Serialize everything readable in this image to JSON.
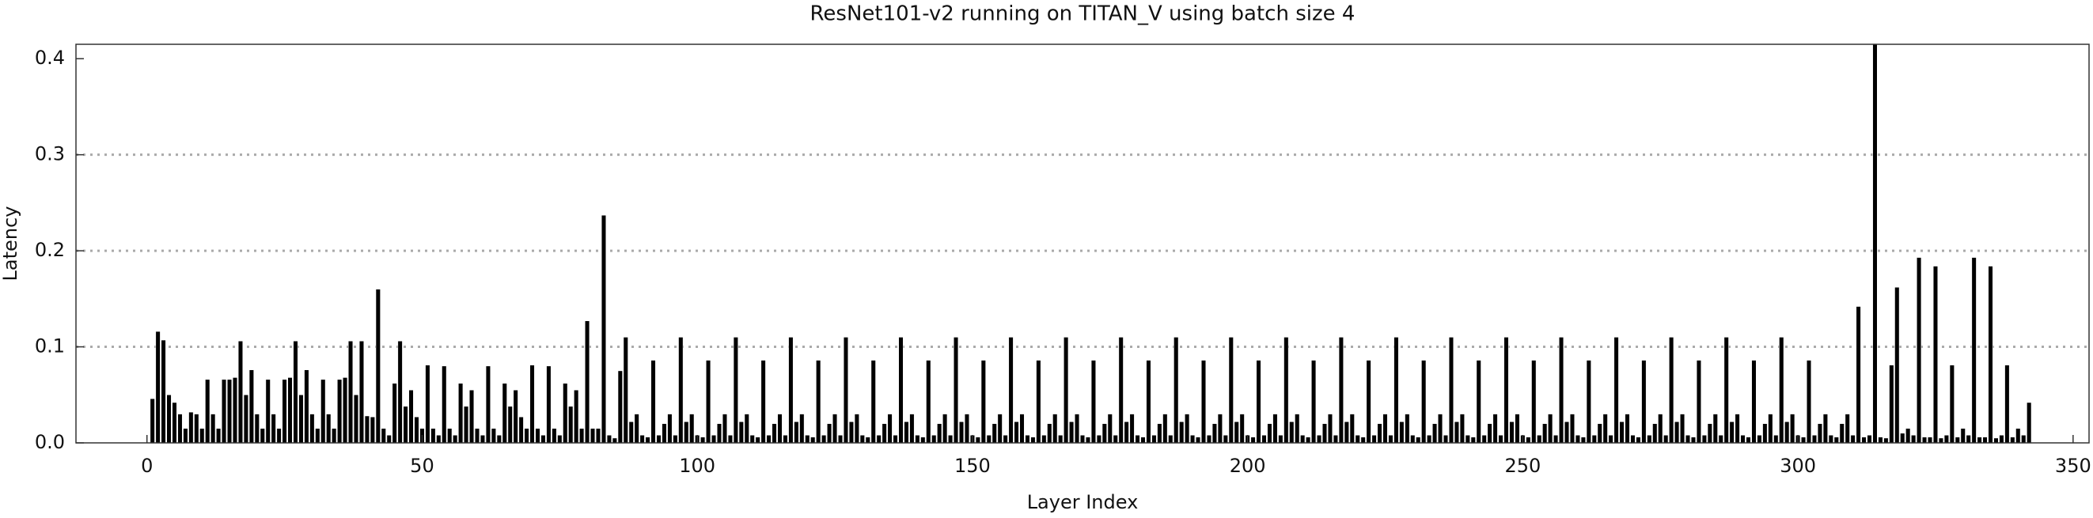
{
  "chart_data": {
    "type": "bar",
    "title": "ResNet101-v2 running on TITAN_V using batch size 4",
    "x_label": "Layer Index",
    "y_label": "Latency",
    "color": "#000000",
    "grid": true,
    "xlim": [
      -12.9,
      352.9
    ],
    "ylim": [
      0,
      0.415
    ],
    "xticks": [
      0,
      50,
      100,
      150,
      200,
      250,
      300,
      350
    ],
    "yticks": [
      {
        "value": 0,
        "label": "0.0"
      },
      0.1,
      0.2,
      0.3,
      0.4
    ],
    "x": [
      1,
      2,
      3,
      4,
      5,
      6,
      7,
      8,
      9,
      10,
      11,
      12,
      13,
      14,
      15,
      16,
      17,
      18,
      19,
      20,
      21,
      22,
      23,
      24,
      25,
      26,
      27,
      28,
      29,
      30,
      31,
      32,
      33,
      34,
      35,
      36,
      37,
      38,
      39,
      40,
      41,
      42,
      43,
      44,
      45,
      46,
      47,
      48,
      49,
      50,
      51,
      52,
      53,
      54,
      55,
      56,
      57,
      58,
      59,
      60,
      61,
      62,
      63,
      64,
      65,
      66,
      67,
      68,
      69,
      70,
      71,
      72,
      73,
      74,
      75,
      76,
      77,
      78,
      79,
      80,
      81,
      82,
      83,
      84,
      85,
      86,
      87,
      88,
      89,
      90,
      91,
      92,
      93,
      94,
      95,
      96,
      97,
      98,
      99,
      100,
      101,
      102,
      103,
      104,
      105,
      106,
      107,
      108,
      109,
      110,
      111,
      112,
      113,
      114,
      115,
      116,
      117,
      118,
      119,
      120,
      121,
      122,
      123,
      124,
      125,
      126,
      127,
      128,
      129,
      130,
      131,
      132,
      133,
      134,
      135,
      136,
      137,
      138,
      139,
      140,
      141,
      142,
      143,
      144,
      145,
      146,
      147,
      148,
      149,
      150,
      151,
      152,
      153,
      154,
      155,
      156,
      157,
      158,
      159,
      160,
      161,
      162,
      163,
      164,
      165,
      166,
      167,
      168,
      169,
      170,
      171,
      172,
      173,
      174,
      175,
      176,
      177,
      178,
      179,
      180,
      181,
      182,
      183,
      184,
      185,
      186,
      187,
      188,
      189,
      190,
      191,
      192,
      193,
      194,
      195,
      196,
      197,
      198,
      199,
      200,
      201,
      202,
      203,
      204,
      205,
      206,
      207,
      208,
      209,
      210,
      211,
      212,
      213,
      214,
      215,
      216,
      217,
      218,
      219,
      220,
      221,
      222,
      223,
      224,
      225,
      226,
      227,
      228,
      229,
      230,
      231,
      232,
      233,
      234,
      235,
      236,
      237,
      238,
      239,
      240,
      241,
      242,
      243,
      244,
      245,
      246,
      247,
      248,
      249,
      250,
      251,
      252,
      253,
      254,
      255,
      256,
      257,
      258,
      259,
      260,
      261,
      262,
      263,
      264,
      265,
      266,
      267,
      268,
      269,
      270,
      271,
      272,
      273,
      274,
      275,
      276,
      277,
      278,
      279,
      280,
      281,
      282,
      283,
      284,
      285,
      286,
      287,
      288,
      289,
      290,
      291,
      292,
      293,
      294,
      295,
      296,
      297,
      298,
      299,
      300,
      301,
      302,
      303,
      304,
      305,
      306,
      307,
      308,
      309,
      310,
      311,
      312,
      313,
      314,
      315,
      316,
      317,
      318,
      319,
      320,
      321,
      322,
      323,
      324,
      325,
      326,
      327,
      328,
      329,
      330,
      331,
      332,
      333,
      334,
      335,
      336,
      337,
      338,
      339,
      340,
      341,
      342
    ],
    "values": [
      0.046,
      0.116,
      0.107,
      0.05,
      0.042,
      0.03,
      0.015,
      0.032,
      0.03,
      0.015,
      0.066,
      0.03,
      0.015,
      0.066,
      0.066,
      0.068,
      0.106,
      0.05,
      0.076,
      0.03,
      0.015,
      0.066,
      0.03,
      0.015,
      0.066,
      0.068,
      0.106,
      0.05,
      0.076,
      0.03,
      0.015,
      0.066,
      0.03,
      0.015,
      0.066,
      0.068,
      0.106,
      0.05,
      0.106,
      0.028,
      0.027,
      0.16,
      0.015,
      0.008,
      0.062,
      0.106,
      0.038,
      0.055,
      0.027,
      0.015,
      0.081,
      0.015,
      0.008,
      0.08,
      0.015,
      0.008,
      0.062,
      0.038,
      0.055,
      0.015,
      0.008,
      0.08,
      0.015,
      0.008,
      0.062,
      0.038,
      0.055,
      0.027,
      0.015,
      0.081,
      0.015,
      0.008,
      0.08,
      0.015,
      0.008,
      0.062,
      0.038,
      0.055,
      0.015,
      0.127,
      0.015,
      0.015,
      0.237,
      0.008,
      0.005,
      0.075,
      0.11,
      0.022,
      0.03,
      0.008,
      0.006,
      0.086,
      0.008,
      0.02,
      0.03,
      0.008,
      0.11,
      0.022,
      0.03,
      0.008,
      0.006,
      0.086,
      0.008,
      0.02,
      0.03,
      0.008,
      0.11,
      0.022,
      0.03,
      0.008,
      0.006,
      0.086,
      0.008,
      0.02,
      0.03,
      0.008,
      0.11,
      0.022,
      0.03,
      0.008,
      0.006,
      0.086,
      0.008,
      0.02,
      0.03,
      0.008,
      0.11,
      0.022,
      0.03,
      0.008,
      0.006,
      0.086,
      0.008,
      0.02,
      0.03,
      0.008,
      0.11,
      0.022,
      0.03,
      0.008,
      0.006,
      0.086,
      0.008,
      0.02,
      0.03,
      0.008,
      0.11,
      0.022,
      0.03,
      0.008,
      0.006,
      0.086,
      0.008,
      0.02,
      0.03,
      0.008,
      0.11,
      0.022,
      0.03,
      0.008,
      0.006,
      0.086,
      0.008,
      0.02,
      0.03,
      0.008,
      0.11,
      0.022,
      0.03,
      0.008,
      0.006,
      0.086,
      0.008,
      0.02,
      0.03,
      0.008,
      0.11,
      0.022,
      0.03,
      0.008,
      0.006,
      0.086,
      0.008,
      0.02,
      0.03,
      0.008,
      0.11,
      0.022,
      0.03,
      0.008,
      0.006,
      0.086,
      0.008,
      0.02,
      0.03,
      0.008,
      0.11,
      0.022,
      0.03,
      0.008,
      0.006,
      0.086,
      0.008,
      0.02,
      0.03,
      0.008,
      0.11,
      0.022,
      0.03,
      0.008,
      0.006,
      0.086,
      0.008,
      0.02,
      0.03,
      0.008,
      0.11,
      0.022,
      0.03,
      0.008,
      0.006,
      0.086,
      0.008,
      0.02,
      0.03,
      0.008,
      0.11,
      0.022,
      0.03,
      0.008,
      0.006,
      0.086,
      0.008,
      0.02,
      0.03,
      0.008,
      0.11,
      0.022,
      0.03,
      0.008,
      0.006,
      0.086,
      0.008,
      0.02,
      0.03,
      0.008,
      0.11,
      0.022,
      0.03,
      0.008,
      0.006,
      0.086,
      0.008,
      0.02,
      0.03,
      0.008,
      0.11,
      0.022,
      0.03,
      0.008,
      0.006,
      0.086,
      0.008,
      0.02,
      0.03,
      0.008,
      0.11,
      0.022,
      0.03,
      0.008,
      0.006,
      0.086,
      0.008,
      0.02,
      0.03,
      0.008,
      0.11,
      0.022,
      0.03,
      0.008,
      0.006,
      0.086,
      0.008,
      0.02,
      0.03,
      0.008,
      0.11,
      0.022,
      0.03,
      0.008,
      0.006,
      0.086,
      0.008,
      0.02,
      0.03,
      0.008,
      0.11,
      0.022,
      0.03,
      0.008,
      0.006,
      0.086,
      0.008,
      0.02,
      0.03,
      0.008,
      0.006,
      0.02,
      0.03,
      0.008,
      0.142,
      0.006,
      0.008,
      0.415,
      0.006,
      0.005,
      0.081,
      0.162,
      0.01,
      0.015,
      0.008,
      0.193,
      0.006,
      0.006,
      0.184,
      0.005,
      0.008,
      0.081,
      0.006,
      0.015,
      0.008,
      0.193,
      0.006,
      0.006,
      0.184,
      0.005,
      0.008,
      0.081,
      0.006,
      0.015,
      0.008,
      0.042
    ]
  }
}
